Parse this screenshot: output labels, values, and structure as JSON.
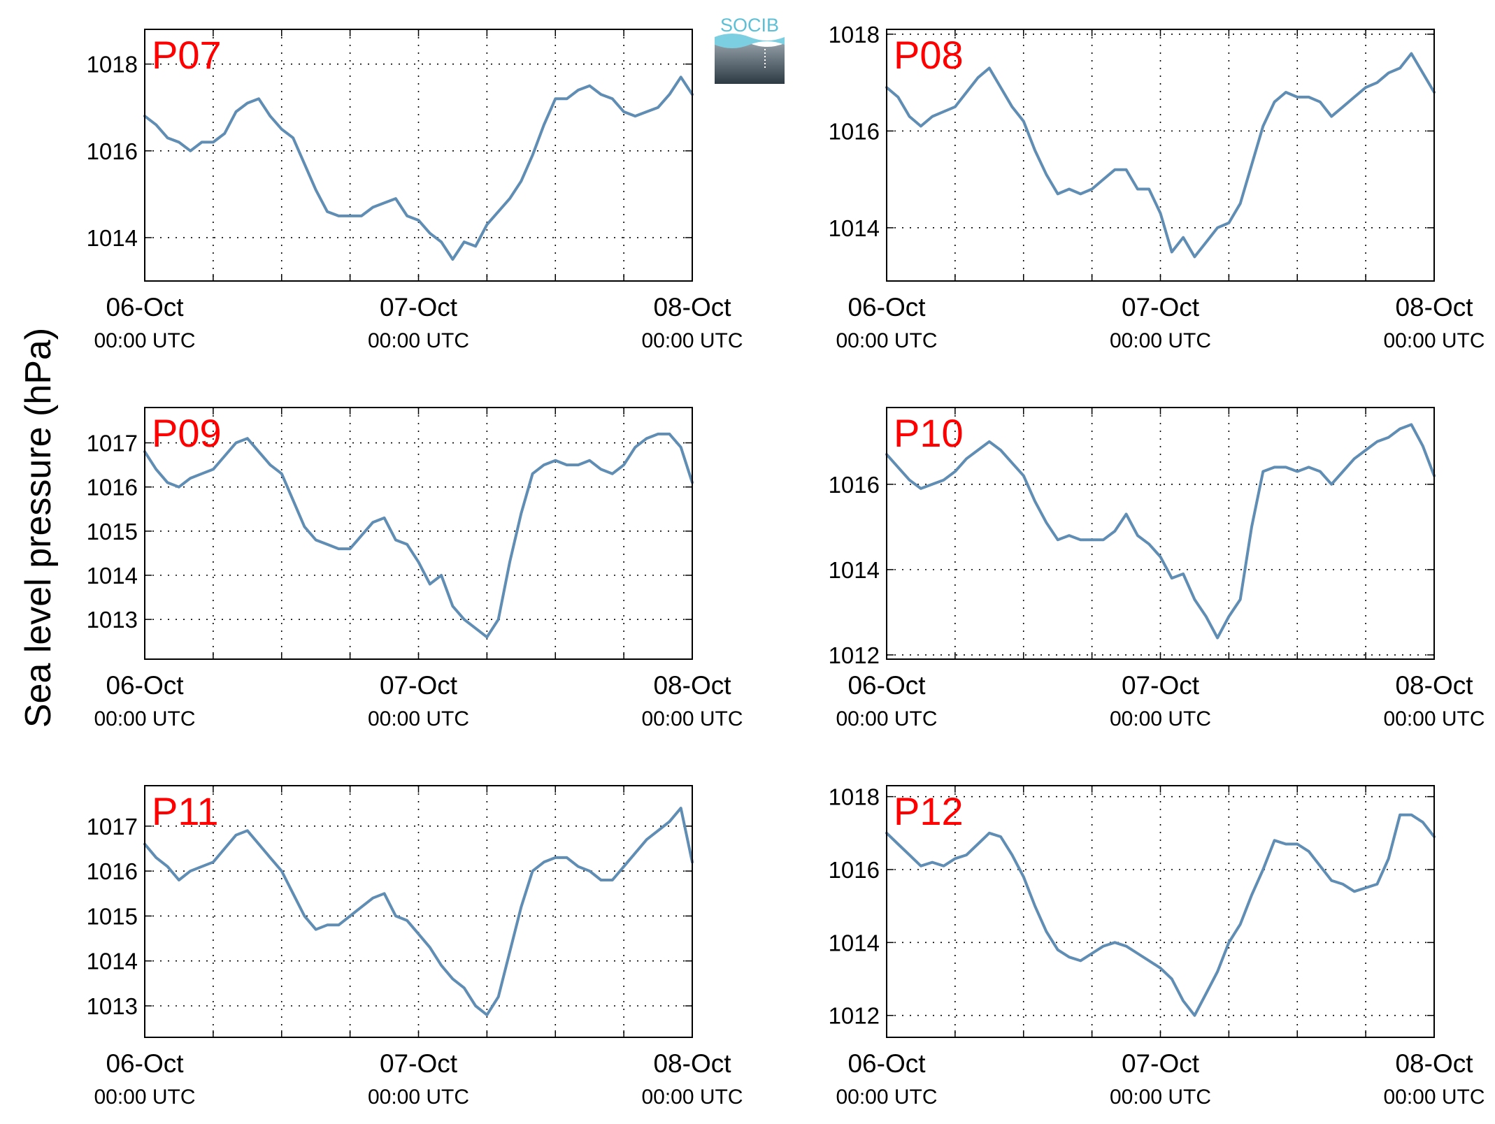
{
  "figure": {
    "ylabel": "Sea level pressure (hPa)",
    "logo_text": "SOCIB",
    "x_tick_dates": [
      "06-Oct",
      "07-Oct",
      "08-Oct"
    ],
    "x_tick_times": [
      "00:00 UTC",
      "00:00 UTC",
      "00:00 UTC"
    ],
    "line_color": "#5f8db3",
    "label_color": "#ff0000"
  },
  "chart_data": [
    {
      "type": "line",
      "title": "P07",
      "xlabel": "",
      "ylabel": "Sea level pressure (hPa)",
      "x_unit": "hours since 06-Oct 00:00 UTC",
      "xlim": [
        0,
        48
      ],
      "ylim": [
        1013,
        1018.8
      ],
      "yticks": [
        1014,
        1016,
        1018
      ],
      "grid": true,
      "x": [
        0,
        1,
        2,
        3,
        4,
        5,
        6,
        7,
        8,
        9,
        10,
        11,
        12,
        13,
        14,
        15,
        16,
        17,
        18,
        19,
        20,
        21,
        22,
        23,
        24,
        25,
        26,
        27,
        28,
        29,
        30,
        31,
        32,
        33,
        34,
        35,
        36,
        37,
        38,
        39,
        40,
        41,
        42,
        43,
        44,
        45,
        46,
        47,
        48
      ],
      "values": [
        1016.8,
        1016.6,
        1016.3,
        1016.2,
        1016.0,
        1016.2,
        1016.2,
        1016.4,
        1016.9,
        1017.1,
        1017.2,
        1016.8,
        1016.5,
        1016.3,
        1015.7,
        1015.1,
        1014.6,
        1014.5,
        1014.5,
        1014.5,
        1014.7,
        1014.8,
        1014.9,
        1014.5,
        1014.4,
        1014.1,
        1013.9,
        1013.5,
        1013.9,
        1013.8,
        1014.3,
        1014.6,
        1014.9,
        1015.3,
        1015.9,
        1016.6,
        1017.2,
        1017.2,
        1017.4,
        1017.5,
        1017.3,
        1017.2,
        1016.9,
        1016.8,
        1016.9,
        1017.0,
        1017.3,
        1017.7,
        1017.3
      ]
    },
    {
      "type": "line",
      "title": "P08",
      "xlabel": "",
      "ylabel": "Sea level pressure (hPa)",
      "x_unit": "hours since 06-Oct 00:00 UTC",
      "xlim": [
        0,
        48
      ],
      "ylim": [
        1012.9,
        1018.1
      ],
      "yticks": [
        1014,
        1016,
        1018
      ],
      "grid": true,
      "x": [
        0,
        1,
        2,
        3,
        4,
        5,
        6,
        7,
        8,
        9,
        10,
        11,
        12,
        13,
        14,
        15,
        16,
        17,
        18,
        19,
        20,
        21,
        22,
        23,
        24,
        25,
        26,
        27,
        28,
        29,
        30,
        31,
        32,
        33,
        34,
        35,
        36,
        37,
        38,
        39,
        40,
        41,
        42,
        43,
        44,
        45,
        46,
        47,
        48
      ],
      "values": [
        1016.9,
        1016.7,
        1016.3,
        1016.1,
        1016.3,
        1016.4,
        1016.5,
        1016.8,
        1017.1,
        1017.3,
        1016.9,
        1016.5,
        1016.2,
        1015.6,
        1015.1,
        1014.7,
        1014.8,
        1014.7,
        1014.8,
        1015.0,
        1015.2,
        1015.2,
        1014.8,
        1014.8,
        1014.3,
        1013.5,
        1013.8,
        1013.4,
        1013.7,
        1014.0,
        1014.1,
        1014.5,
        1015.3,
        1016.1,
        1016.6,
        1016.8,
        1016.7,
        1016.7,
        1016.6,
        1016.3,
        1016.5,
        1016.7,
        1016.9,
        1017.0,
        1017.2,
        1017.3,
        1017.6,
        1017.2,
        1016.8
      ]
    },
    {
      "type": "line",
      "title": "P09",
      "xlabel": "",
      "ylabel": "Sea level pressure (hPa)",
      "x_unit": "hours since 06-Oct 00:00 UTC",
      "xlim": [
        0,
        48
      ],
      "ylim": [
        1012.1,
        1017.8
      ],
      "yticks": [
        1013,
        1014,
        1015,
        1016,
        1017
      ],
      "grid": true,
      "x": [
        0,
        1,
        2,
        3,
        4,
        5,
        6,
        7,
        8,
        9,
        10,
        11,
        12,
        13,
        14,
        15,
        16,
        17,
        18,
        19,
        20,
        21,
        22,
        23,
        24,
        25,
        26,
        27,
        28,
        29,
        30,
        31,
        32,
        33,
        34,
        35,
        36,
        37,
        38,
        39,
        40,
        41,
        42,
        43,
        44,
        45,
        46,
        47,
        48
      ],
      "values": [
        1016.8,
        1016.4,
        1016.1,
        1016.0,
        1016.2,
        1016.3,
        1016.4,
        1016.7,
        1017.0,
        1017.1,
        1016.8,
        1016.5,
        1016.3,
        1015.7,
        1015.1,
        1014.8,
        1014.7,
        1014.6,
        1014.6,
        1014.9,
        1015.2,
        1015.3,
        1014.8,
        1014.7,
        1014.3,
        1013.8,
        1014.0,
        1013.3,
        1013.0,
        1012.8,
        1012.6,
        1013.0,
        1014.3,
        1015.4,
        1016.3,
        1016.5,
        1016.6,
        1016.5,
        1016.5,
        1016.6,
        1016.4,
        1016.3,
        1016.5,
        1016.9,
        1017.1,
        1017.2,
        1017.2,
        1016.9,
        1016.1
      ]
    },
    {
      "type": "line",
      "title": "P10",
      "xlabel": "",
      "ylabel": "Sea level pressure (hPa)",
      "x_unit": "hours since 06-Oct 00:00 UTC",
      "xlim": [
        0,
        48
      ],
      "ylim": [
        1011.9,
        1017.8
      ],
      "yticks": [
        1012,
        1014,
        1016
      ],
      "grid": true,
      "x": [
        0,
        1,
        2,
        3,
        4,
        5,
        6,
        7,
        8,
        9,
        10,
        11,
        12,
        13,
        14,
        15,
        16,
        17,
        18,
        19,
        20,
        21,
        22,
        23,
        24,
        25,
        26,
        27,
        28,
        29,
        30,
        31,
        32,
        33,
        34,
        35,
        36,
        37,
        38,
        39,
        40,
        41,
        42,
        43,
        44,
        45,
        46,
        47,
        48
      ],
      "values": [
        1016.7,
        1016.4,
        1016.1,
        1015.9,
        1016.0,
        1016.1,
        1016.3,
        1016.6,
        1016.8,
        1017.0,
        1016.8,
        1016.5,
        1016.2,
        1015.6,
        1015.1,
        1014.7,
        1014.8,
        1014.7,
        1014.7,
        1014.7,
        1014.9,
        1015.3,
        1014.8,
        1014.6,
        1014.3,
        1013.8,
        1013.9,
        1013.3,
        1012.9,
        1012.4,
        1012.9,
        1013.3,
        1015.0,
        1016.3,
        1016.4,
        1016.4,
        1016.3,
        1016.4,
        1016.3,
        1016.0,
        1016.3,
        1016.6,
        1016.8,
        1017.0,
        1017.1,
        1017.3,
        1017.4,
        1016.9,
        1016.2
      ]
    },
    {
      "type": "line",
      "title": "P11",
      "xlabel": "",
      "ylabel": "Sea level pressure (hPa)",
      "x_unit": "hours since 06-Oct 00:00 UTC",
      "xlim": [
        0,
        48
      ],
      "ylim": [
        1012.3,
        1017.9
      ],
      "yticks": [
        1013,
        1014,
        1015,
        1016,
        1017
      ],
      "grid": true,
      "x": [
        0,
        1,
        2,
        3,
        4,
        5,
        6,
        7,
        8,
        9,
        10,
        11,
        12,
        13,
        14,
        15,
        16,
        17,
        18,
        19,
        20,
        21,
        22,
        23,
        24,
        25,
        26,
        27,
        28,
        29,
        30,
        31,
        32,
        33,
        34,
        35,
        36,
        37,
        38,
        39,
        40,
        41,
        42,
        43,
        44,
        45,
        46,
        47,
        48
      ],
      "values": [
        1016.6,
        1016.3,
        1016.1,
        1015.8,
        1016.0,
        1016.1,
        1016.2,
        1016.5,
        1016.8,
        1016.9,
        1016.6,
        1016.3,
        1016.0,
        1015.5,
        1015.0,
        1014.7,
        1014.8,
        1014.8,
        1015.0,
        1015.2,
        1015.4,
        1015.5,
        1015.0,
        1014.9,
        1014.6,
        1014.3,
        1013.9,
        1013.6,
        1013.4,
        1013.0,
        1012.8,
        1013.2,
        1014.2,
        1015.2,
        1016.0,
        1016.2,
        1016.3,
        1016.3,
        1016.1,
        1016.0,
        1015.8,
        1015.8,
        1016.1,
        1016.4,
        1016.7,
        1016.9,
        1017.1,
        1017.4,
        1016.2
      ]
    },
    {
      "type": "line",
      "title": "P12",
      "xlabel": "",
      "ylabel": "Sea level pressure (hPa)",
      "x_unit": "hours since 06-Oct 00:00 UTC",
      "xlim": [
        0,
        48
      ],
      "ylim": [
        1011.4,
        1018.3
      ],
      "yticks": [
        1012,
        1014,
        1016,
        1018
      ],
      "grid": true,
      "x": [
        0,
        1,
        2,
        3,
        4,
        5,
        6,
        7,
        8,
        9,
        10,
        11,
        12,
        13,
        14,
        15,
        16,
        17,
        18,
        19,
        20,
        21,
        22,
        23,
        24,
        25,
        26,
        27,
        28,
        29,
        30,
        31,
        32,
        33,
        34,
        35,
        36,
        37,
        38,
        39,
        40,
        41,
        42,
        43,
        44,
        45,
        46,
        47,
        48
      ],
      "values": [
        1017.0,
        1016.7,
        1016.4,
        1016.1,
        1016.2,
        1016.1,
        1016.3,
        1016.4,
        1016.7,
        1017.0,
        1016.9,
        1016.4,
        1015.8,
        1015.0,
        1014.3,
        1013.8,
        1013.6,
        1013.5,
        1013.7,
        1013.9,
        1014.0,
        1013.9,
        1013.7,
        1013.5,
        1013.3,
        1013.0,
        1012.4,
        1012.0,
        1012.6,
        1013.2,
        1014.0,
        1014.5,
        1015.3,
        1016.0,
        1016.8,
        1016.7,
        1016.7,
        1016.5,
        1016.1,
        1015.7,
        1015.6,
        1015.4,
        1015.5,
        1015.6,
        1016.3,
        1017.5,
        1017.5,
        1017.3,
        1016.9
      ]
    }
  ]
}
